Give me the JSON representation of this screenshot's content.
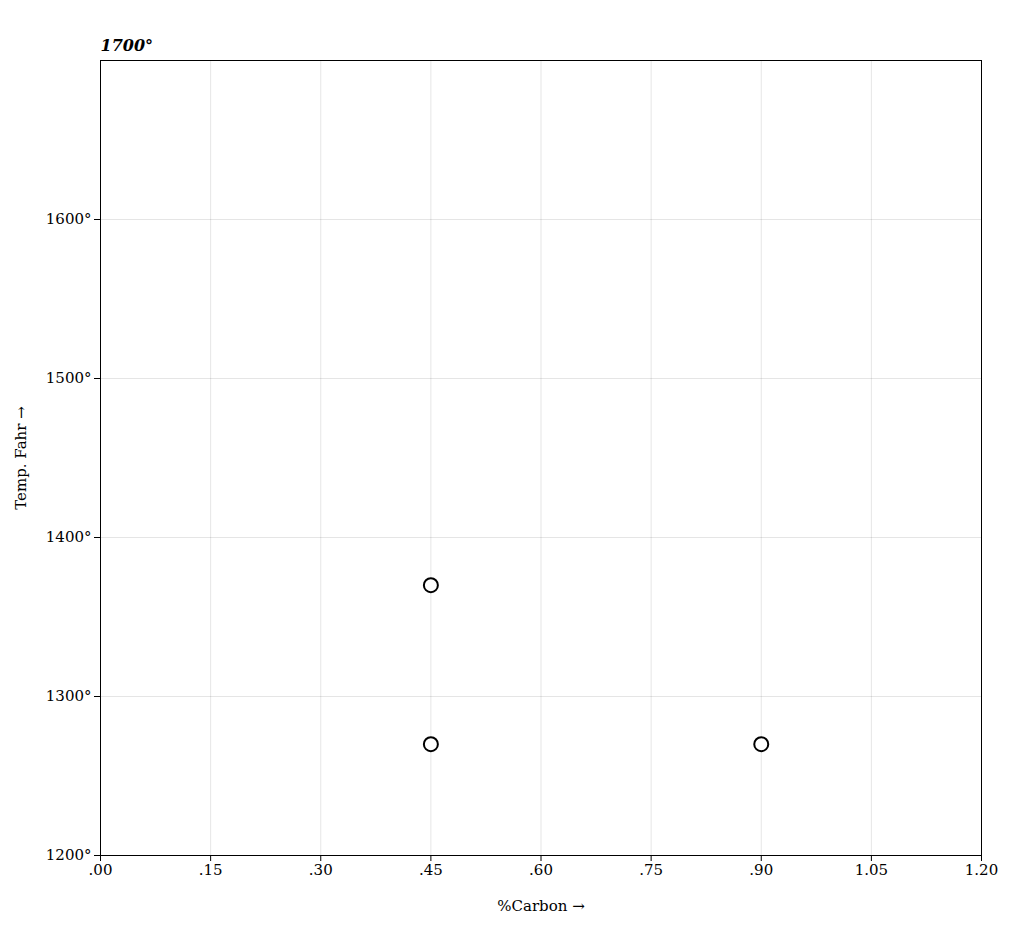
{
  "chart_data": {
    "type": "scatter",
    "xlabel": "%Carbon",
    "ylabel": "Temp. Fahr",
    "x": [
      0.45,
      0.45,
      0.9
    ],
    "values": [
      1370,
      1270,
      1270
    ],
    "color": "#000000",
    "marker": "open circle",
    "xlim": [
      0.0,
      1.2
    ],
    "ylim": [
      1200,
      1700
    ],
    "xticks": [
      {
        "value": 0.0,
        "label": ".00"
      },
      {
        "value": 0.15,
        "label": ".15"
      },
      {
        "value": 0.3,
        "label": ".30"
      },
      {
        "value": 0.45,
        "label": ".45"
      },
      {
        "value": 0.6,
        "label": ".60"
      },
      {
        "value": 0.75,
        "label": ".75"
      },
      {
        "value": 0.9,
        "label": ".90"
      },
      1.05,
      {
        "value": 1.2,
        "label": "1.20"
      }
    ],
    "yticks": [
      {
        "value": 1200,
        "label": "1200°"
      },
      {
        "value": 1300,
        "label": "1300°"
      },
      {
        "value": 1400,
        "label": "1400°"
      },
      {
        "value": 1500,
        "label": "1500°"
      },
      {
        "value": 1600,
        "label": "1600°"
      }
    ],
    "annotations": [
      {
        "text": "1700°"
      }
    ],
    "grid": true
  }
}
